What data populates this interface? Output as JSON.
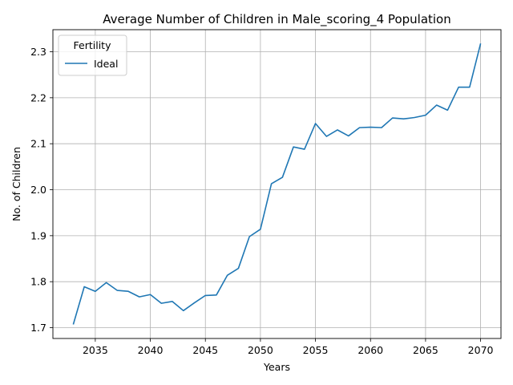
{
  "chart_data": {
    "type": "line",
    "title": "Average Number of Children in Male_scoring_4 Population",
    "xlabel": "Years",
    "ylabel": "No. of Children",
    "xlim": [
      2031.15,
      2071.85
    ],
    "ylim": [
      1.6765,
      2.348
    ],
    "xticks": [
      2035,
      2040,
      2045,
      2050,
      2055,
      2060,
      2065,
      2070
    ],
    "yticks": [
      1.7,
      1.8,
      1.9,
      2.0,
      2.1,
      2.2,
      2.3
    ],
    "ytick_labels": [
      "1.7",
      "1.8",
      "1.9",
      "2.0",
      "2.1",
      "2.2",
      "2.3"
    ],
    "grid": true,
    "legend": {
      "title": "Fertility",
      "placement": "top-left"
    },
    "x": [
      2033,
      2034,
      2035,
      2036,
      2037,
      2038,
      2039,
      2040,
      2041,
      2042,
      2043,
      2044,
      2045,
      2046,
      2047,
      2048,
      2049,
      2050,
      2051,
      2052,
      2053,
      2054,
      2055,
      2056,
      2057,
      2058,
      2059,
      2060,
      2061,
      2062,
      2063,
      2064,
      2065,
      2066,
      2067,
      2068,
      2069,
      2070
    ],
    "series": [
      {
        "name": "Ideal",
        "color": "#1f77b4",
        "values": [
          1.707,
          1.789,
          1.779,
          1.798,
          1.781,
          1.779,
          1.767,
          1.772,
          1.753,
          1.757,
          1.737,
          1.754,
          1.77,
          1.771,
          1.814,
          1.829,
          1.898,
          1.914,
          2.013,
          2.027,
          2.093,
          2.088,
          2.144,
          2.116,
          2.13,
          2.117,
          2.135,
          2.136,
          2.135,
          2.156,
          2.154,
          2.157,
          2.162,
          2.184,
          2.173,
          2.223,
          2.223,
          2.318
        ]
      }
    ]
  }
}
